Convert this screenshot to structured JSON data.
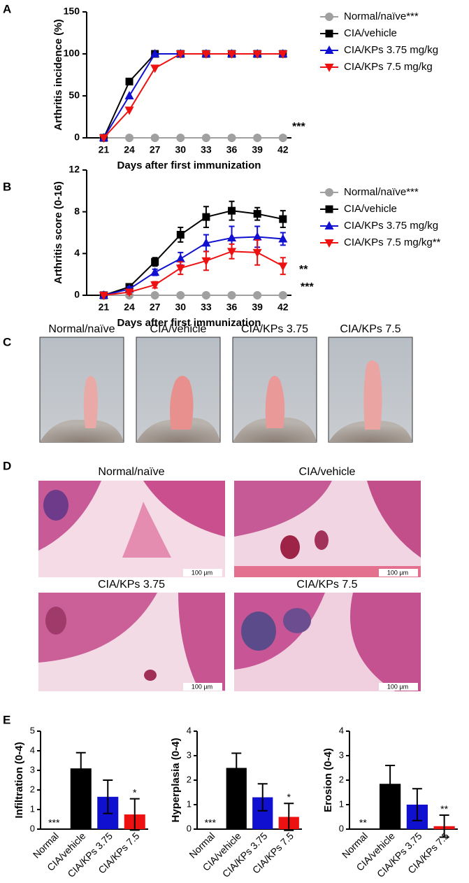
{
  "panel_labels": [
    "A",
    "B",
    "C",
    "D",
    "E"
  ],
  "photos": {
    "labels": [
      "Normal/naïve",
      "CIA/vehicle",
      "CIA/KPs 3.75",
      "CIA/KPs 7.5"
    ]
  },
  "histology": {
    "labels": [
      "Normal/naïve",
      "CIA/vehicle",
      "CIA/KPs 3.75",
      "CIA/KPs 7.5"
    ],
    "scale_bar": "100 µm"
  },
  "chart_data": [
    {
      "type": "line",
      "x_label": "Days after first immunization",
      "y_label": "Arthritis incidence (%)",
      "x": [
        21,
        24,
        27,
        30,
        33,
        36,
        39,
        42
      ],
      "xlim": [
        19,
        43
      ],
      "xticks": [
        21,
        24,
        27,
        30,
        33,
        36,
        39,
        42
      ],
      "ylim": [
        0,
        150
      ],
      "yticks": [
        0,
        50,
        100,
        150
      ],
      "series": [
        {
          "name": "Normal/naïve***",
          "color": "#a0a0a0",
          "marker": "circle",
          "values": [
            0,
            0,
            0,
            0,
            0,
            0,
            0,
            0
          ]
        },
        {
          "name": "CIA/vehicle",
          "color": "#000000",
          "marker": "square",
          "values": [
            0,
            67,
            100,
            100,
            100,
            100,
            100,
            100
          ]
        },
        {
          "name": "CIA/KPs 3.75 mg/kg",
          "color": "#1010d0",
          "marker": "triangle-up",
          "values": [
            0,
            50,
            100,
            100,
            100,
            100,
            100,
            100
          ]
        },
        {
          "name": "CIA/KPs 7.5 mg/kg",
          "color": "#ee1111",
          "marker": "triangle-down",
          "values": [
            0,
            33,
            83,
            100,
            100,
            100,
            100,
            100
          ]
        }
      ],
      "annotations": [
        "***"
      ]
    },
    {
      "type": "line",
      "x_label": "Days after first immunization",
      "y_label": "Arthritis score (0-16)",
      "x": [
        21,
        24,
        27,
        30,
        33,
        36,
        39,
        42
      ],
      "xlim": [
        19,
        43
      ],
      "xticks": [
        21,
        24,
        27,
        30,
        33,
        36,
        39,
        42
      ],
      "ylim": [
        0,
        12
      ],
      "yticks": [
        0,
        4,
        8,
        12
      ],
      "series": [
        {
          "name": "Normal/naïve***",
          "color": "#a0a0a0",
          "marker": "circle",
          "values": [
            0,
            0,
            0,
            0,
            0,
            0,
            0,
            0
          ]
        },
        {
          "name": "CIA/vehicle",
          "color": "#000000",
          "marker": "square",
          "values": [
            0,
            0.8,
            3.2,
            5.8,
            7.5,
            8.1,
            7.8,
            7.3
          ],
          "errors": [
            0.1,
            0.2,
            0.4,
            0.7,
            1.0,
            0.9,
            0.6,
            0.8
          ]
        },
        {
          "name": "CIA/KPs 3.75 mg/kg",
          "color": "#1010d0",
          "marker": "triangle-up",
          "values": [
            0,
            0.6,
            2.2,
            3.5,
            5.0,
            5.5,
            5.6,
            5.4
          ],
          "errors": [
            0,
            0.2,
            0.3,
            0.6,
            0.8,
            1.1,
            1.0,
            0.6
          ]
        },
        {
          "name": "CIA/KPs 7.5 mg/kg**",
          "color": "#ee1111",
          "marker": "triangle-down",
          "values": [
            0,
            0.3,
            1.0,
            2.6,
            3.3,
            4.2,
            4.1,
            2.8
          ],
          "errors": [
            0,
            0.2,
            0.3,
            0.6,
            0.9,
            0.7,
            1.2,
            0.8
          ]
        }
      ],
      "annotations": [
        "**",
        "***"
      ]
    },
    {
      "type": "bar",
      "y_label": "Infiltration (0-4)",
      "categories": [
        "Normal",
        "CIA/vehicle",
        "CIA/KPs 3.75",
        "CIA/KPs 7.5"
      ],
      "values": [
        0,
        3.1,
        1.65,
        0.75
      ],
      "errors": [
        0,
        0.8,
        0.85,
        0.8
      ],
      "colors": [
        "#000000",
        "#000000",
        "#1010d0",
        "#ee1111"
      ],
      "annotations": [
        "***",
        null,
        null,
        "*"
      ],
      "ylim": [
        0,
        5
      ],
      "yticks": [
        0,
        1,
        2,
        3,
        4,
        5
      ]
    },
    {
      "type": "bar",
      "y_label": "Hyperplasia (0-4)",
      "categories": [
        "Normal",
        "CIA/vehicle",
        "CIA/KPs 3.75",
        "CIA/KPs 7.5"
      ],
      "values": [
        0,
        2.5,
        1.3,
        0.5
      ],
      "errors": [
        0,
        0.6,
        0.55,
        0.55
      ],
      "colors": [
        "#000000",
        "#000000",
        "#1010d0",
        "#ee1111"
      ],
      "annotations": [
        "***",
        null,
        null,
        "*"
      ],
      "ylim": [
        0,
        4
      ],
      "yticks": [
        0,
        1,
        2,
        3,
        4
      ]
    },
    {
      "type": "bar",
      "y_label": "Erosion (0-4)",
      "categories": [
        "Normal",
        "CIA/vehicle",
        "CIA/KPs 3.75",
        "CIA/KPs 7.5"
      ],
      "values": [
        0,
        1.85,
        1.0,
        0.12
      ],
      "errors": [
        0,
        0.75,
        0.65,
        0.45
      ],
      "colors": [
        "#000000",
        "#000000",
        "#1010d0",
        "#ee1111"
      ],
      "annotations": [
        "**",
        null,
        null,
        "**"
      ],
      "ylim": [
        0,
        4
      ],
      "yticks": [
        0,
        1,
        2,
        3,
        4
      ]
    }
  ]
}
